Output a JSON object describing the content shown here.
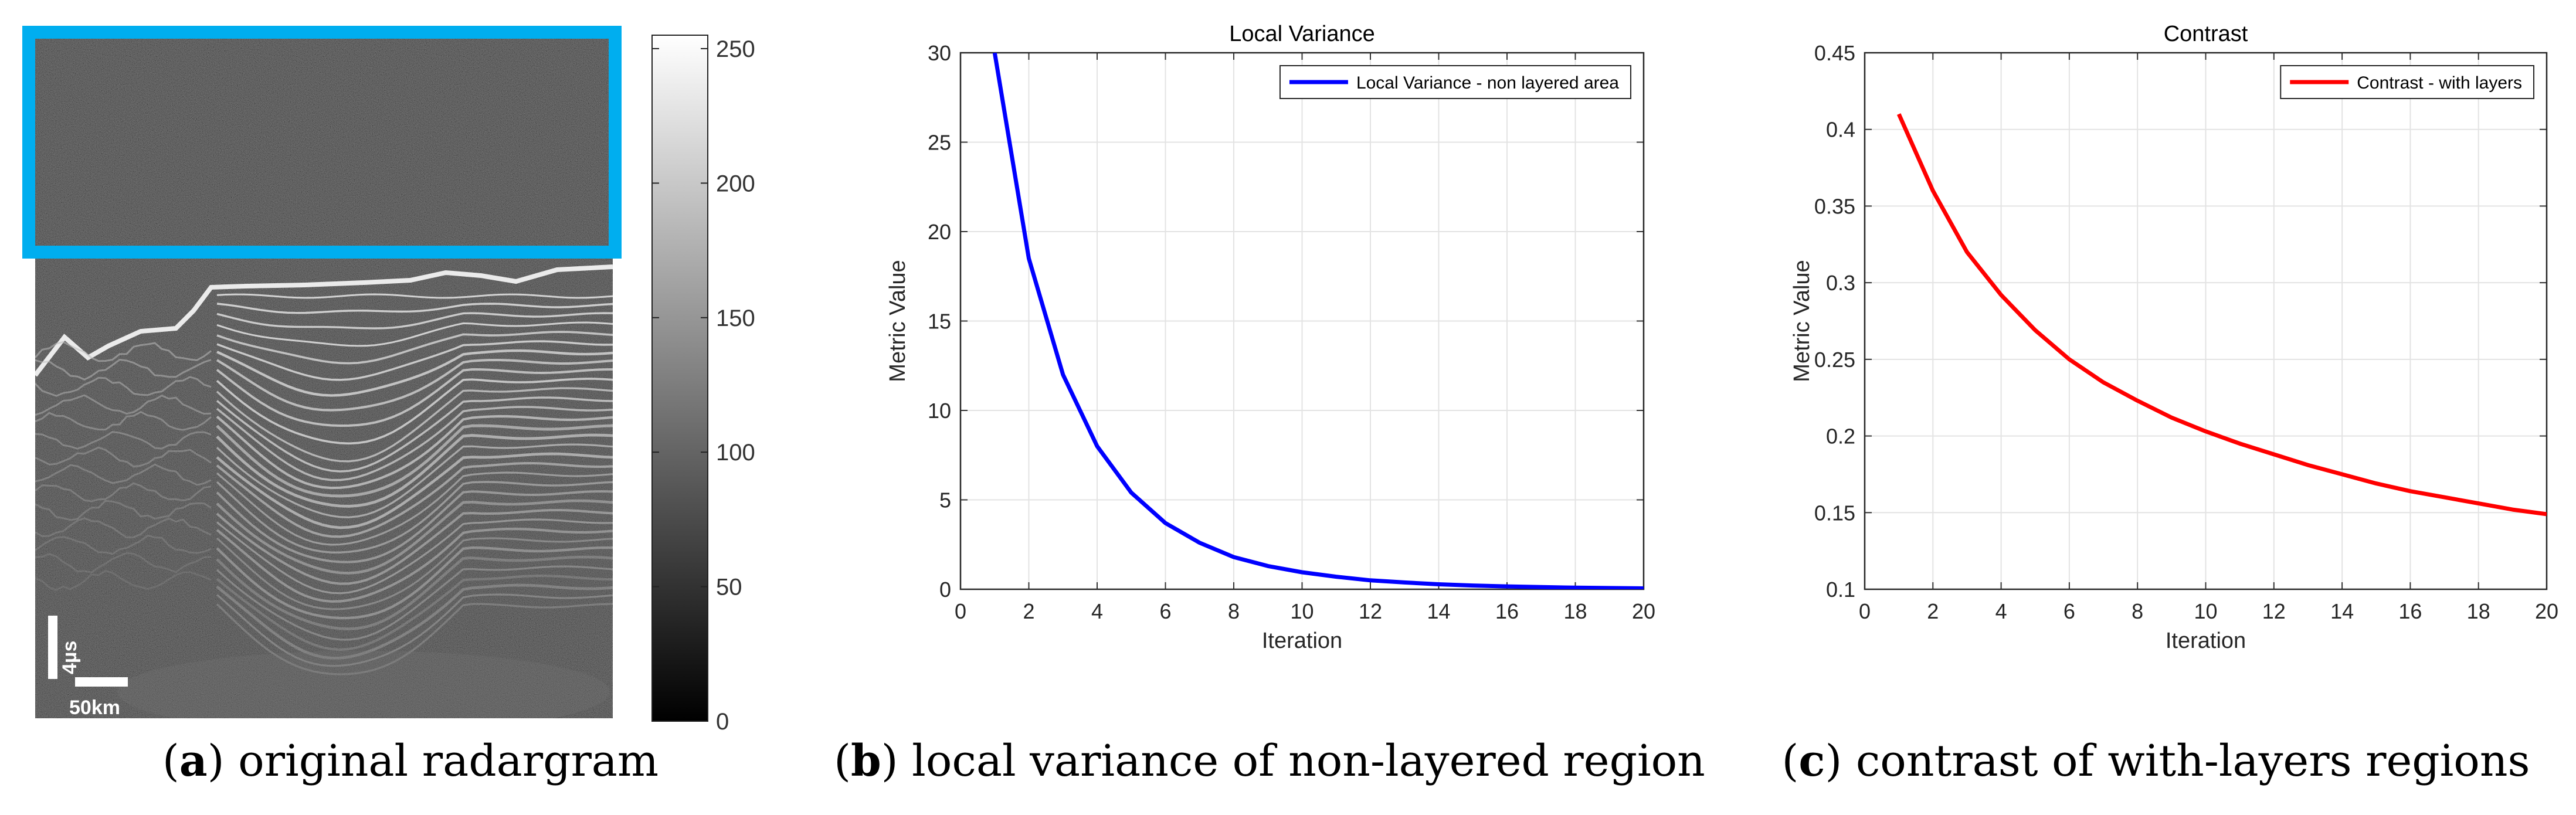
{
  "colorbar": {
    "ticks": [
      "250",
      "200",
      "150",
      "100",
      "50",
      "0"
    ],
    "values": [
      250,
      200,
      150,
      100,
      50,
      0
    ],
    "range": [
      0,
      255
    ]
  },
  "radargram": {
    "scale_time_label": "4µs",
    "scale_distance_label": "50km",
    "highlight_color": "#00aeef"
  },
  "captions": {
    "a": {
      "letter": "a",
      "text": " original radargram"
    },
    "b": {
      "letter": "b",
      "text": " local variance of non-layered region"
    },
    "c": {
      "letter": "c",
      "text": " contrast of with-layers regions"
    }
  },
  "chart_data": [
    {
      "type": "line",
      "title": "Local Variance",
      "xlabel": "Iteration",
      "ylabel": "Metric Value",
      "xlim": [
        0,
        20
      ],
      "ylim": [
        0,
        30
      ],
      "xticks": [
        0,
        2,
        4,
        6,
        8,
        10,
        12,
        14,
        16,
        18,
        20
      ],
      "yticks": [
        0,
        5,
        10,
        15,
        20,
        25,
        30
      ],
      "grid": true,
      "legend_position": "top-right",
      "series": [
        {
          "name": "Local Variance - non layered area",
          "color": "#0000ff",
          "x": [
            1,
            2,
            3,
            4,
            5,
            6,
            7,
            8,
            9,
            10,
            11,
            12,
            13,
            14,
            15,
            16,
            17,
            18,
            19,
            20
          ],
          "values": [
            30.0,
            18.5,
            12.0,
            8.0,
            5.4,
            3.7,
            2.6,
            1.8,
            1.3,
            0.95,
            0.7,
            0.5,
            0.38,
            0.28,
            0.21,
            0.16,
            0.12,
            0.09,
            0.07,
            0.05
          ]
        }
      ]
    },
    {
      "type": "line",
      "title": "Contrast",
      "xlabel": "Iteration",
      "ylabel": "Metric Value",
      "xlim": [
        0,
        20
      ],
      "ylim": [
        0.1,
        0.45
      ],
      "xticks": [
        0,
        2,
        4,
        6,
        8,
        10,
        12,
        14,
        16,
        18,
        20
      ],
      "yticks": [
        0.1,
        0.15,
        0.2,
        0.25,
        0.3,
        0.35,
        0.4,
        0.45
      ],
      "ytick_labels": [
        "0.1",
        "0.15",
        "0.2",
        "0.25",
        "0.3",
        "0.35",
        "0.4",
        "0.45"
      ],
      "grid": true,
      "legend_position": "top-right",
      "series": [
        {
          "name": "Contrast - with layers",
          "color": "#ff0000",
          "x": [
            1,
            2,
            3,
            4,
            5,
            6,
            7,
            8,
            9,
            10,
            11,
            12,
            13,
            14,
            15,
            16,
            17,
            18,
            19,
            20
          ],
          "values": [
            0.41,
            0.36,
            0.32,
            0.292,
            0.269,
            0.25,
            0.235,
            0.223,
            0.212,
            0.203,
            0.195,
            0.188,
            0.181,
            0.175,
            0.169,
            0.164,
            0.16,
            0.156,
            0.152,
            0.149
          ]
        }
      ]
    }
  ]
}
